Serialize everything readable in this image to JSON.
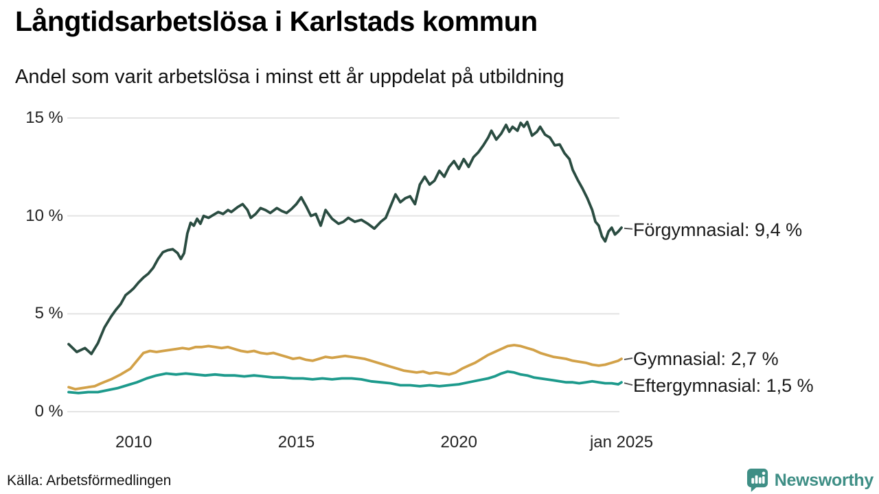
{
  "footer": {
    "source": "Källa: Arbetsförmedlingen",
    "brand": "Newsworthy"
  },
  "brand_color": "#3e8e85",
  "chart_data": {
    "type": "line",
    "title": "Långtidsarbetslösa i Karlstads kommun",
    "subtitle": "Andel som varit arbetslösa i minst ett år uppdelat på utbildning",
    "xlabel": "",
    "ylabel": "",
    "x_domain": [
      2008,
      2025
    ],
    "ylim": [
      0,
      15
    ],
    "grid": "horizontal",
    "grid_color": "#e3e3e3",
    "legend_position": "right-edge-labels",
    "yticks": [
      {
        "value": 0,
        "label": "0 %"
      },
      {
        "value": 5,
        "label": "5 %"
      },
      {
        "value": 10,
        "label": "10 %"
      },
      {
        "value": 15,
        "label": "15 %"
      }
    ],
    "xticks": [
      {
        "value": 2010,
        "label": "2010"
      },
      {
        "value": 2015,
        "label": "2015"
      },
      {
        "value": 2020,
        "label": "2020"
      },
      {
        "value": 2025,
        "label": "jan 2025"
      }
    ],
    "series": [
      {
        "name": "Förgymnasial",
        "label": "Förgymnasial: 9,4 %",
        "end_value_display": "9,4 %",
        "color": "#2a4c41",
        "points": [
          [
            2008.0,
            3.45
          ],
          [
            2008.25,
            3.05
          ],
          [
            2008.5,
            3.25
          ],
          [
            2008.7,
            2.95
          ],
          [
            2008.9,
            3.5
          ],
          [
            2009.1,
            4.3
          ],
          [
            2009.3,
            4.85
          ],
          [
            2009.45,
            5.2
          ],
          [
            2009.6,
            5.5
          ],
          [
            2009.75,
            5.95
          ],
          [
            2009.9,
            6.15
          ],
          [
            2010.0,
            6.3
          ],
          [
            2010.15,
            6.6
          ],
          [
            2010.3,
            6.85
          ],
          [
            2010.45,
            7.05
          ],
          [
            2010.6,
            7.35
          ],
          [
            2010.75,
            7.8
          ],
          [
            2010.9,
            8.15
          ],
          [
            2011.05,
            8.25
          ],
          [
            2011.2,
            8.3
          ],
          [
            2011.35,
            8.1
          ],
          [
            2011.45,
            7.8
          ],
          [
            2011.55,
            8.1
          ],
          [
            2011.65,
            9.1
          ],
          [
            2011.75,
            9.65
          ],
          [
            2011.85,
            9.5
          ],
          [
            2011.95,
            9.85
          ],
          [
            2012.05,
            9.6
          ],
          [
            2012.15,
            10.0
          ],
          [
            2012.3,
            9.9
          ],
          [
            2012.45,
            10.05
          ],
          [
            2012.6,
            10.2
          ],
          [
            2012.75,
            10.1
          ],
          [
            2012.9,
            10.3
          ],
          [
            2013.0,
            10.2
          ],
          [
            2013.2,
            10.45
          ],
          [
            2013.35,
            10.6
          ],
          [
            2013.5,
            10.3
          ],
          [
            2013.6,
            9.9
          ],
          [
            2013.75,
            10.1
          ],
          [
            2013.9,
            10.4
          ],
          [
            2014.05,
            10.3
          ],
          [
            2014.2,
            10.15
          ],
          [
            2014.4,
            10.4
          ],
          [
            2014.55,
            10.25
          ],
          [
            2014.7,
            10.15
          ],
          [
            2014.85,
            10.35
          ],
          [
            2015.0,
            10.6
          ],
          [
            2015.15,
            10.95
          ],
          [
            2015.3,
            10.5
          ],
          [
            2015.45,
            10.0
          ],
          [
            2015.6,
            10.1
          ],
          [
            2015.75,
            9.5
          ],
          [
            2015.9,
            10.3
          ],
          [
            2016.1,
            9.85
          ],
          [
            2016.3,
            9.6
          ],
          [
            2016.45,
            9.7
          ],
          [
            2016.6,
            9.9
          ],
          [
            2016.8,
            9.7
          ],
          [
            2017.0,
            9.8
          ],
          [
            2017.2,
            9.6
          ],
          [
            2017.4,
            9.35
          ],
          [
            2017.6,
            9.7
          ],
          [
            2017.75,
            9.9
          ],
          [
            2017.9,
            10.5
          ],
          [
            2018.05,
            11.1
          ],
          [
            2018.2,
            10.7
          ],
          [
            2018.35,
            10.9
          ],
          [
            2018.5,
            11.0
          ],
          [
            2018.65,
            10.6
          ],
          [
            2018.8,
            11.6
          ],
          [
            2018.95,
            12.0
          ],
          [
            2019.1,
            11.6
          ],
          [
            2019.25,
            11.8
          ],
          [
            2019.4,
            12.3
          ],
          [
            2019.55,
            12.0
          ],
          [
            2019.7,
            12.5
          ],
          [
            2019.85,
            12.8
          ],
          [
            2020.0,
            12.4
          ],
          [
            2020.15,
            12.9
          ],
          [
            2020.3,
            12.5
          ],
          [
            2020.45,
            13.0
          ],
          [
            2020.6,
            13.25
          ],
          [
            2020.75,
            13.6
          ],
          [
            2020.9,
            14.0
          ],
          [
            2021.0,
            14.35
          ],
          [
            2021.15,
            13.9
          ],
          [
            2021.3,
            14.2
          ],
          [
            2021.45,
            14.65
          ],
          [
            2021.55,
            14.3
          ],
          [
            2021.65,
            14.55
          ],
          [
            2021.8,
            14.35
          ],
          [
            2021.9,
            14.75
          ],
          [
            2022.0,
            14.55
          ],
          [
            2022.1,
            14.8
          ],
          [
            2022.25,
            14.1
          ],
          [
            2022.4,
            14.3
          ],
          [
            2022.5,
            14.55
          ],
          [
            2022.65,
            14.15
          ],
          [
            2022.8,
            14.0
          ],
          [
            2022.95,
            13.6
          ],
          [
            2023.1,
            13.65
          ],
          [
            2023.25,
            13.2
          ],
          [
            2023.4,
            12.9
          ],
          [
            2023.5,
            12.35
          ],
          [
            2023.65,
            11.85
          ],
          [
            2023.8,
            11.4
          ],
          [
            2023.95,
            10.9
          ],
          [
            2024.1,
            10.3
          ],
          [
            2024.2,
            9.7
          ],
          [
            2024.3,
            9.5
          ],
          [
            2024.4,
            8.95
          ],
          [
            2024.5,
            8.7
          ],
          [
            2024.6,
            9.2
          ],
          [
            2024.7,
            9.4
          ],
          [
            2024.8,
            9.05
          ],
          [
            2024.9,
            9.2
          ],
          [
            2025.0,
            9.4
          ]
        ]
      },
      {
        "name": "Gymnasial",
        "label": "Gymnasial: 2,7 %",
        "end_value_display": "2,7 %",
        "color": "#d2a148",
        "points": [
          [
            2008.0,
            1.25
          ],
          [
            2008.2,
            1.15
          ],
          [
            2008.4,
            1.2
          ],
          [
            2008.6,
            1.25
          ],
          [
            2008.8,
            1.3
          ],
          [
            2009.0,
            1.45
          ],
          [
            2009.3,
            1.65
          ],
          [
            2009.6,
            1.9
          ],
          [
            2009.9,
            2.2
          ],
          [
            2010.1,
            2.6
          ],
          [
            2010.3,
            3.0
          ],
          [
            2010.5,
            3.1
          ],
          [
            2010.7,
            3.05
          ],
          [
            2010.9,
            3.1
          ],
          [
            2011.1,
            3.15
          ],
          [
            2011.3,
            3.2
          ],
          [
            2011.5,
            3.25
          ],
          [
            2011.7,
            3.2
          ],
          [
            2011.9,
            3.3
          ],
          [
            2012.1,
            3.3
          ],
          [
            2012.3,
            3.35
          ],
          [
            2012.5,
            3.3
          ],
          [
            2012.7,
            3.25
          ],
          [
            2012.9,
            3.3
          ],
          [
            2013.1,
            3.2
          ],
          [
            2013.3,
            3.1
          ],
          [
            2013.5,
            3.05
          ],
          [
            2013.7,
            3.1
          ],
          [
            2013.9,
            3.0
          ],
          [
            2014.1,
            2.95
          ],
          [
            2014.3,
            3.0
          ],
          [
            2014.5,
            2.9
          ],
          [
            2014.7,
            2.8
          ],
          [
            2014.9,
            2.7
          ],
          [
            2015.1,
            2.75
          ],
          [
            2015.3,
            2.65
          ],
          [
            2015.5,
            2.6
          ],
          [
            2015.7,
            2.7
          ],
          [
            2015.9,
            2.8
          ],
          [
            2016.1,
            2.75
          ],
          [
            2016.3,
            2.8
          ],
          [
            2016.5,
            2.85
          ],
          [
            2016.7,
            2.8
          ],
          [
            2016.9,
            2.75
          ],
          [
            2017.1,
            2.7
          ],
          [
            2017.3,
            2.6
          ],
          [
            2017.5,
            2.5
          ],
          [
            2017.7,
            2.4
          ],
          [
            2017.9,
            2.3
          ],
          [
            2018.1,
            2.2
          ],
          [
            2018.3,
            2.1
          ],
          [
            2018.5,
            2.05
          ],
          [
            2018.7,
            2.0
          ],
          [
            2018.9,
            2.05
          ],
          [
            2019.1,
            1.95
          ],
          [
            2019.3,
            2.0
          ],
          [
            2019.5,
            1.95
          ],
          [
            2019.7,
            1.9
          ],
          [
            2019.9,
            2.0
          ],
          [
            2020.1,
            2.2
          ],
          [
            2020.3,
            2.35
          ],
          [
            2020.5,
            2.5
          ],
          [
            2020.7,
            2.7
          ],
          [
            2020.9,
            2.9
          ],
          [
            2021.1,
            3.05
          ],
          [
            2021.3,
            3.2
          ],
          [
            2021.5,
            3.35
          ],
          [
            2021.7,
            3.4
          ],
          [
            2021.9,
            3.35
          ],
          [
            2022.1,
            3.25
          ],
          [
            2022.3,
            3.15
          ],
          [
            2022.5,
            3.0
          ],
          [
            2022.7,
            2.9
          ],
          [
            2022.9,
            2.8
          ],
          [
            2023.1,
            2.75
          ],
          [
            2023.3,
            2.7
          ],
          [
            2023.5,
            2.6
          ],
          [
            2023.7,
            2.55
          ],
          [
            2023.9,
            2.5
          ],
          [
            2024.1,
            2.4
          ],
          [
            2024.3,
            2.35
          ],
          [
            2024.5,
            2.4
          ],
          [
            2024.7,
            2.5
          ],
          [
            2024.9,
            2.6
          ],
          [
            2025.0,
            2.7
          ]
        ]
      },
      {
        "name": "Eftergymnasial",
        "label": "Eftergymnasial: 1,5 %",
        "end_value_display": "1,5 %",
        "color": "#1d9a8c",
        "points": [
          [
            2008.0,
            1.0
          ],
          [
            2008.3,
            0.95
          ],
          [
            2008.6,
            1.0
          ],
          [
            2008.9,
            1.0
          ],
          [
            2009.2,
            1.1
          ],
          [
            2009.5,
            1.2
          ],
          [
            2009.8,
            1.35
          ],
          [
            2010.1,
            1.5
          ],
          [
            2010.4,
            1.7
          ],
          [
            2010.7,
            1.85
          ],
          [
            2011.0,
            1.95
          ],
          [
            2011.3,
            1.9
          ],
          [
            2011.6,
            1.95
          ],
          [
            2011.9,
            1.9
          ],
          [
            2012.2,
            1.85
          ],
          [
            2012.5,
            1.9
          ],
          [
            2012.8,
            1.85
          ],
          [
            2013.1,
            1.85
          ],
          [
            2013.4,
            1.8
          ],
          [
            2013.7,
            1.85
          ],
          [
            2014.0,
            1.8
          ],
          [
            2014.3,
            1.75
          ],
          [
            2014.6,
            1.75
          ],
          [
            2014.9,
            1.7
          ],
          [
            2015.2,
            1.7
          ],
          [
            2015.5,
            1.65
          ],
          [
            2015.8,
            1.7
          ],
          [
            2016.1,
            1.65
          ],
          [
            2016.4,
            1.7
          ],
          [
            2016.7,
            1.7
          ],
          [
            2017.0,
            1.65
          ],
          [
            2017.3,
            1.55
          ],
          [
            2017.6,
            1.5
          ],
          [
            2017.9,
            1.45
          ],
          [
            2018.2,
            1.35
          ],
          [
            2018.5,
            1.35
          ],
          [
            2018.8,
            1.3
          ],
          [
            2019.1,
            1.35
          ],
          [
            2019.4,
            1.3
          ],
          [
            2019.7,
            1.35
          ],
          [
            2020.0,
            1.4
          ],
          [
            2020.3,
            1.5
          ],
          [
            2020.6,
            1.6
          ],
          [
            2020.9,
            1.7
          ],
          [
            2021.1,
            1.8
          ],
          [
            2021.3,
            1.95
          ],
          [
            2021.5,
            2.05
          ],
          [
            2021.7,
            2.0
          ],
          [
            2021.9,
            1.9
          ],
          [
            2022.1,
            1.85
          ],
          [
            2022.3,
            1.75
          ],
          [
            2022.5,
            1.7
          ],
          [
            2022.7,
            1.65
          ],
          [
            2022.9,
            1.6
          ],
          [
            2023.1,
            1.55
          ],
          [
            2023.3,
            1.5
          ],
          [
            2023.5,
            1.5
          ],
          [
            2023.7,
            1.45
          ],
          [
            2023.9,
            1.5
          ],
          [
            2024.1,
            1.55
          ],
          [
            2024.3,
            1.5
          ],
          [
            2024.5,
            1.45
          ],
          [
            2024.7,
            1.45
          ],
          [
            2024.9,
            1.4
          ],
          [
            2025.0,
            1.5
          ]
        ]
      }
    ]
  }
}
